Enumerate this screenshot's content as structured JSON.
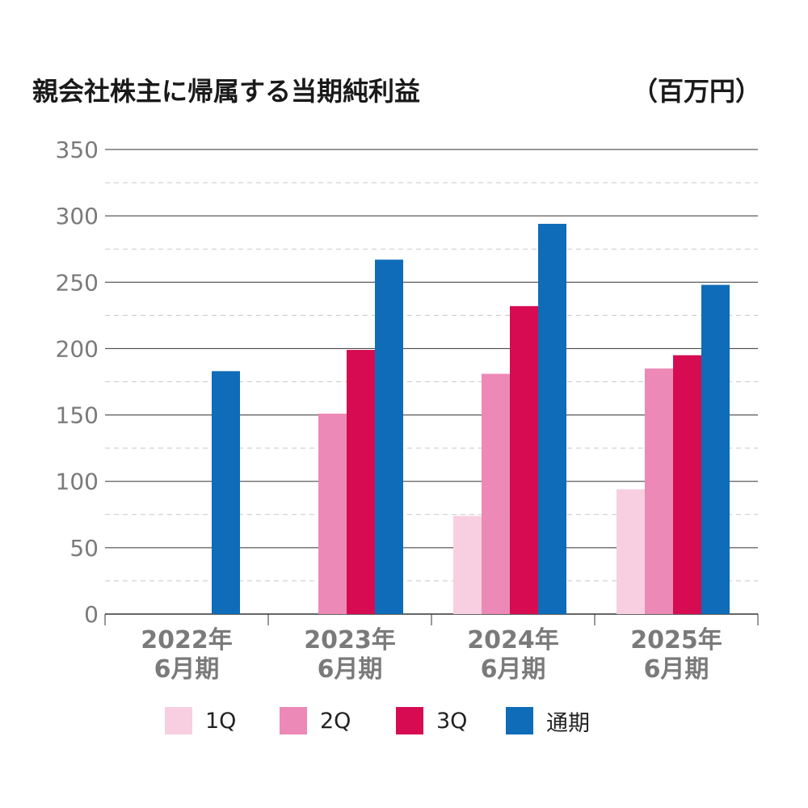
{
  "title": "親会社株主に帰属する当期純利益",
  "unit": "（百万円）",
  "chart_data": {
    "type": "bar",
    "categories": [
      [
        "2022年",
        "6月期"
      ],
      [
        "2023年",
        "6月期"
      ],
      [
        "2024年",
        "6月期"
      ],
      [
        "2025年",
        "6月期"
      ]
    ],
    "series": [
      {
        "name": "1Q",
        "color": "#f7cfe0",
        "values": [
          null,
          null,
          74,
          94
        ]
      },
      {
        "name": "2Q",
        "color": "#ec89b6",
        "values": [
          null,
          151,
          181,
          185
        ]
      },
      {
        "name": "3Q",
        "color": "#d60b52",
        "values": [
          null,
          199,
          232,
          195
        ]
      },
      {
        "name": "通期",
        "color": "#0e6cb8",
        "values": [
          183,
          267,
          294,
          248
        ]
      }
    ],
    "ylim": [
      0,
      350
    ],
    "yticks": [
      0,
      50,
      100,
      150,
      200,
      250,
      300,
      350
    ],
    "grid": true,
    "legend_position": "bottom"
  },
  "legend": [
    {
      "label": "1Q",
      "color": "#f7cfe0"
    },
    {
      "label": "2Q",
      "color": "#ec89b6"
    },
    {
      "label": "3Q",
      "color": "#d60b52"
    },
    {
      "label": "通期",
      "color": "#0e6cb8"
    }
  ]
}
